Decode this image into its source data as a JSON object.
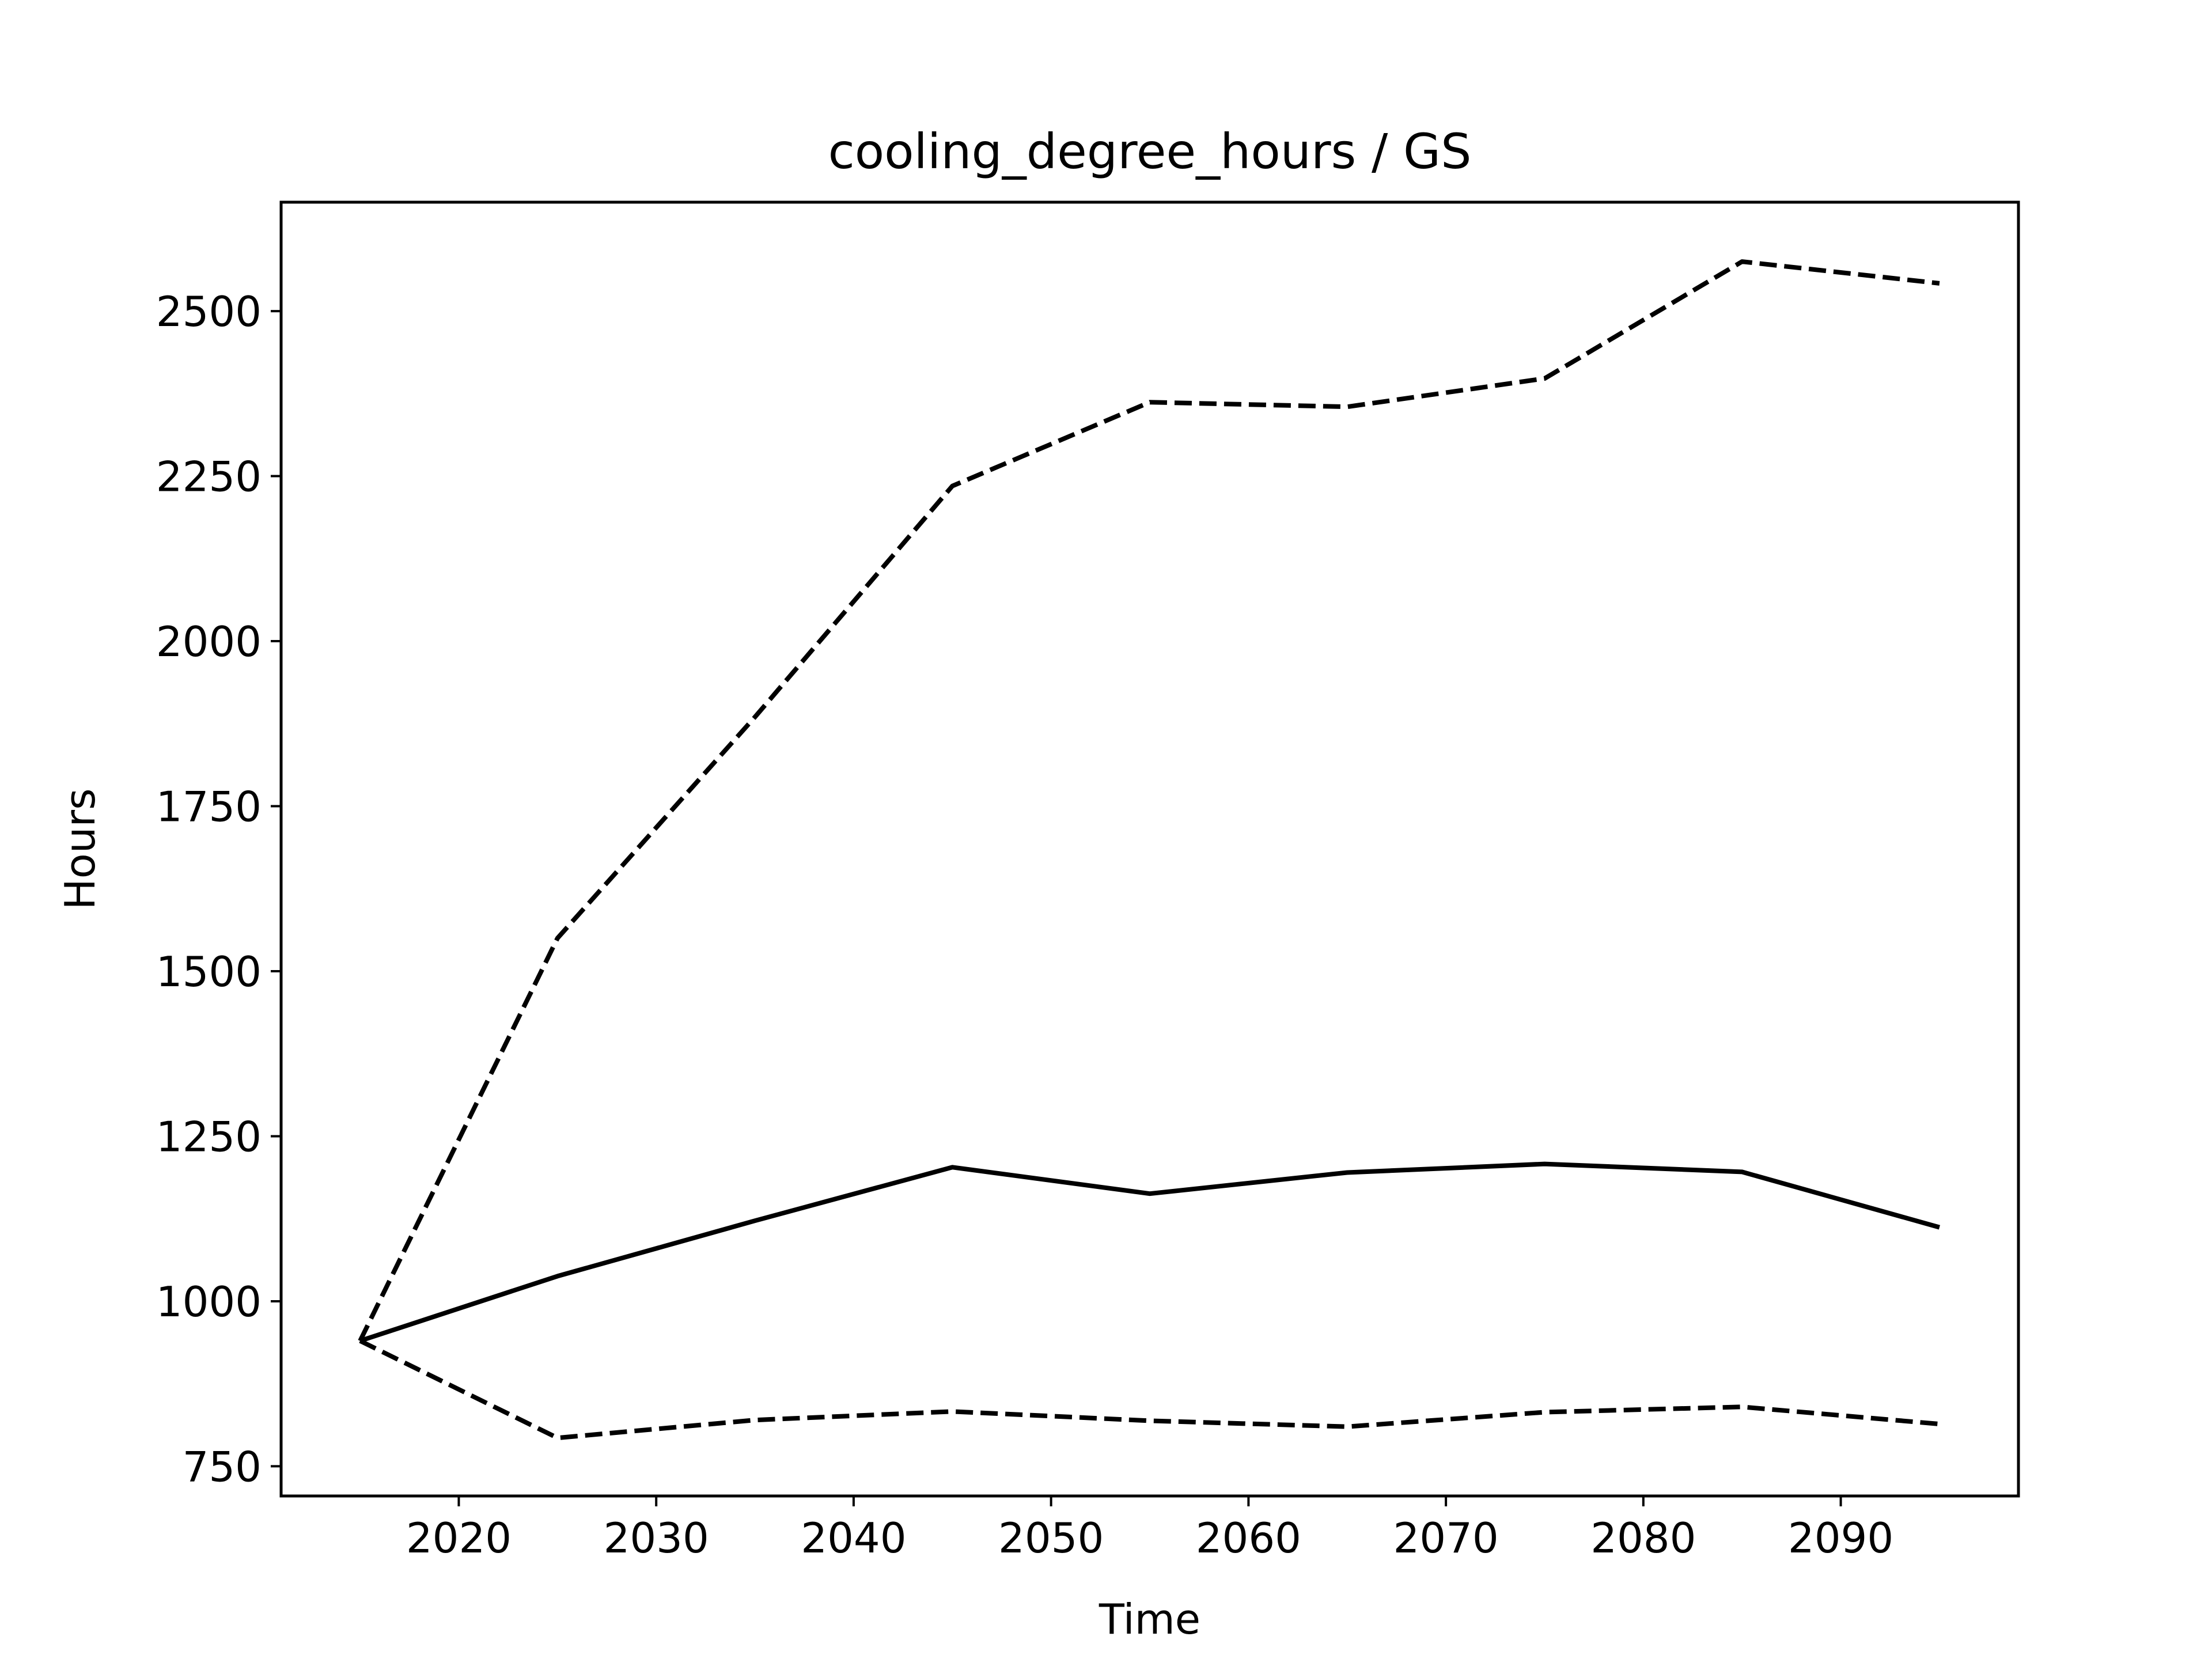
{
  "chart_data": {
    "type": "line",
    "title": "cooling_degree_hours / GS",
    "xlabel": "Time",
    "ylabel": "Hours",
    "xlim": [
      2011,
      2099
    ],
    "ylim": [
      705,
      2665
    ],
    "xticks": [
      2020,
      2030,
      2040,
      2050,
      2060,
      2070,
      2080,
      2090
    ],
    "yticks": [
      750,
      1000,
      1250,
      1500,
      1750,
      2000,
      2250,
      2500
    ],
    "grid": false,
    "x": [
      2015,
      2025,
      2035,
      2045,
      2055,
      2065,
      2075,
      2085,
      2095
    ],
    "series": [
      {
        "style": "dashed",
        "color": "#000000",
        "values": [
          940,
          1550,
          1885,
          2235,
          2362,
          2355,
          2398,
          2575,
          2542
        ]
      },
      {
        "style": "solid",
        "color": "#000000",
        "values": [
          940,
          1038,
          1122,
          1203,
          1163,
          1195,
          1208,
          1196,
          1112
        ]
      },
      {
        "style": "dashed",
        "color": "#000000",
        "values": [
          940,
          793,
          820,
          833,
          819,
          810,
          832,
          840,
          814
        ]
      }
    ]
  }
}
